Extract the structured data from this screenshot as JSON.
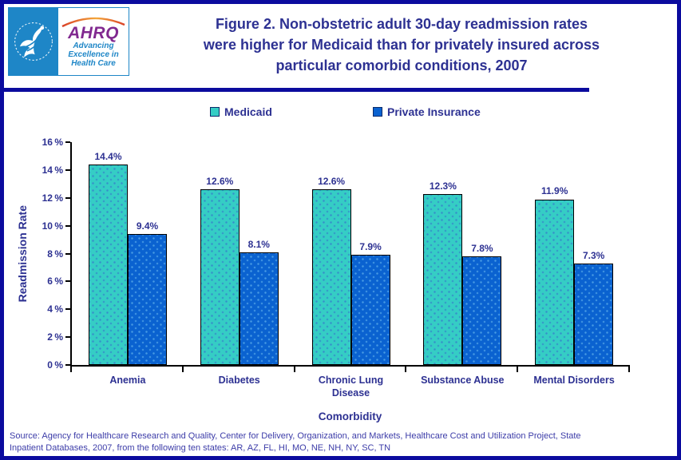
{
  "header": {
    "title_lines": [
      "Figure 2. Non-obstetric adult 30-day readmission rates",
      "were higher for Medicaid than for privately insured across",
      "particular comorbid conditions, 2007"
    ],
    "logo": {
      "ahrq_word": "AHRQ",
      "tagline_lines": [
        "Advancing",
        "Excellence in",
        "Health Care"
      ]
    }
  },
  "legend": {
    "items": [
      {
        "label": "Medicaid",
        "color": "#35CDC5"
      },
      {
        "label": "Private Insurance",
        "color": "#0A62D0"
      }
    ]
  },
  "chart_data": {
    "type": "bar",
    "title": "Figure 2. Non-obstetric adult 30-day readmission rates were higher for Medicaid than for privately insured across particular comorbid conditions, 2007",
    "categories": [
      "Anemia",
      "Diabetes",
      "Chronic Lung Disease",
      "Substance Abuse",
      "Mental Disorders"
    ],
    "series": [
      {
        "name": "Medicaid",
        "color": "#35CDC5",
        "values": [
          14.4,
          12.6,
          12.6,
          12.3,
          11.9
        ]
      },
      {
        "name": "Private Insurance",
        "color": "#0A62D0",
        "values": [
          9.4,
          8.1,
          7.9,
          7.8,
          7.3
        ]
      }
    ],
    "xlabel": "Comorbidity",
    "ylabel": "Readmission Rate",
    "ylim": [
      0,
      16
    ],
    "ytick_step": 2,
    "y_tick_labels": [
      "16 %",
      "14 %",
      "12 %",
      "10 %",
      "8 %",
      "6 %",
      "4 %",
      "2 %",
      "0 %"
    ],
    "grid": false,
    "legend_position": "top",
    "data_label_suffix": "%"
  },
  "footer": {
    "source_lines": [
      "Source: Agency for Healthcare Research and Quality, Center for Delivery, Organization, and Markets, Healthcare Cost and Utilization Project, State",
      "Inpatient Databases, 2007, from the following ten states: AR, AZ, FL, HI, MO, NE, NH, NY, SC, TN"
    ]
  }
}
